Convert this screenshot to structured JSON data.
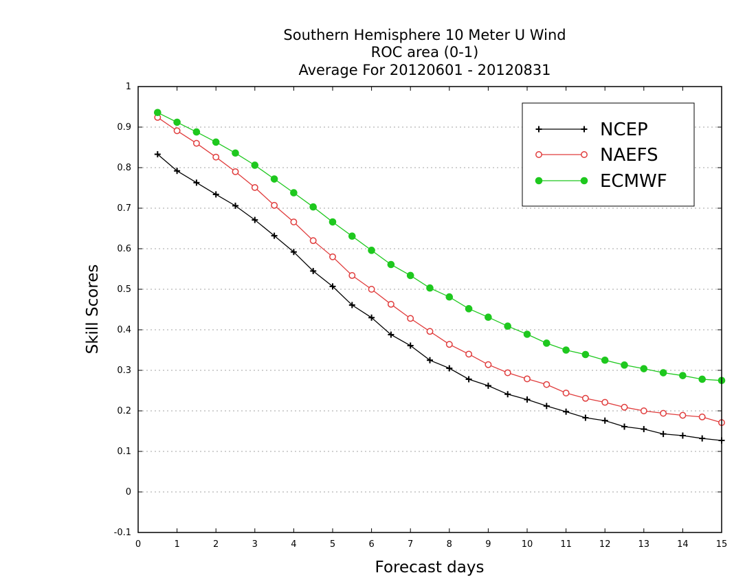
{
  "chart_data": {
    "type": "line",
    "title": [
      "Southern Hemisphere 10 Meter U Wind",
      "ROC area (0-1)",
      "Average For 20120601 - 20120831"
    ],
    "xlabel": "Forecast days",
    "ylabel": "Skill Scores",
    "xlim": [
      0,
      15
    ],
    "ylim": [
      -0.1,
      1
    ],
    "xticks": [
      "0",
      "1",
      "2",
      "3",
      "4",
      "5",
      "6",
      "7",
      "8",
      "9",
      "10",
      "11",
      "12",
      "13",
      "14",
      "15"
    ],
    "yticks": [
      "-0.1",
      "0",
      "0.1",
      "0.2",
      "0.3",
      "0.4",
      "0.5",
      "0.6",
      "0.7",
      "0.8",
      "0.9",
      "1"
    ],
    "grid": "horizontal dotted",
    "legend_position": "top-right",
    "x": [
      0.5,
      1,
      1.5,
      2,
      2.5,
      3,
      3.5,
      4,
      4.5,
      5,
      5.5,
      6,
      6.5,
      7,
      7.5,
      8,
      8.5,
      9,
      9.5,
      10,
      10.5,
      11,
      11.5,
      12,
      12.5,
      13,
      13.5,
      14,
      14.5,
      15
    ],
    "series": [
      {
        "name": "NCEP",
        "color": "#000000",
        "marker": "plus",
        "values": [
          0.833,
          0.792,
          0.763,
          0.734,
          0.706,
          0.671,
          0.632,
          0.592,
          0.545,
          0.507,
          0.461,
          0.43,
          0.388,
          0.361,
          0.325,
          0.305,
          0.278,
          0.262,
          0.241,
          0.228,
          0.212,
          0.198,
          0.183,
          0.176,
          0.161,
          0.155,
          0.143,
          0.139,
          0.132,
          0.127
        ]
      },
      {
        "name": "NAEFS",
        "color": "#e03c3c",
        "marker": "open-circle",
        "values": [
          0.924,
          0.891,
          0.86,
          0.826,
          0.79,
          0.751,
          0.707,
          0.666,
          0.62,
          0.58,
          0.534,
          0.5,
          0.463,
          0.428,
          0.396,
          0.364,
          0.34,
          0.314,
          0.294,
          0.279,
          0.265,
          0.244,
          0.231,
          0.221,
          0.209,
          0.2,
          0.194,
          0.189,
          0.185,
          0.171
        ]
      },
      {
        "name": "ECMWF",
        "color": "#1ec81e",
        "marker": "filled-circle",
        "values": [
          0.936,
          0.912,
          0.888,
          0.863,
          0.836,
          0.806,
          0.772,
          0.738,
          0.703,
          0.666,
          0.631,
          0.596,
          0.561,
          0.534,
          0.503,
          0.481,
          0.452,
          0.431,
          0.409,
          0.389,
          0.367,
          0.35,
          0.339,
          0.325,
          0.313,
          0.304,
          0.294,
          0.287,
          0.278,
          0.275
        ]
      }
    ]
  }
}
